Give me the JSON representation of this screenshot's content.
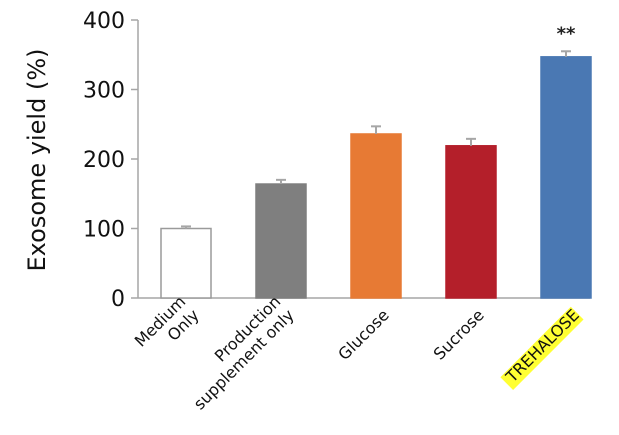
{
  "chart_data": {
    "type": "bar",
    "ylabel": "Exosome yield (%)",
    "ylim": [
      0,
      400
    ],
    "yticks": [
      0,
      100,
      200,
      300,
      400
    ],
    "categories": [
      [
        "Medium",
        "Only"
      ],
      [
        "Production",
        "supplement only"
      ],
      [
        "Glucose"
      ],
      [
        "Sucrose"
      ],
      [
        "TREHALOSE"
      ]
    ],
    "values": [
      100,
      164,
      236,
      219,
      347
    ],
    "errors": [
      3,
      6,
      11,
      10,
      8
    ],
    "colors": [
      "#ffffff",
      "#7f7f7f",
      "#e77a34",
      "#b41f2a",
      "#4a78b3"
    ],
    "edge_colors": [
      "#9a9a9a",
      "#7f7f7f",
      "#e77a34",
      "#b41f2a",
      "#4a78b3"
    ],
    "annotations": [
      {
        "category_index": 4,
        "text": "**"
      }
    ],
    "highlight": {
      "category_index": 4,
      "color": "#ffff33"
    },
    "grid": false
  }
}
